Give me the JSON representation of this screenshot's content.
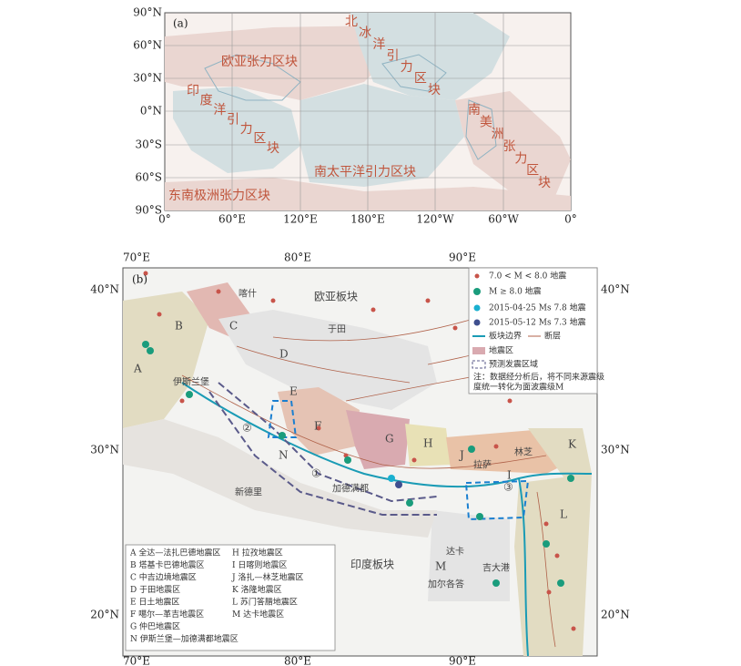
{
  "panel_a": {
    "label": "(a)",
    "lat_labels": [
      "90°N",
      "60°N",
      "30°N",
      "0°N",
      "30°S",
      "60°S",
      "90°S"
    ],
    "lon_labels": [
      "0°",
      "60°E",
      "120°E",
      "180°E",
      "120°W",
      "60°W",
      "0°"
    ],
    "regions": [
      "欧亚张力区块",
      "北冰洋引力区块",
      "印度洋引力区块",
      "南美洲张力区块",
      "南太平洋引力区块",
      "东南极洲张力区块"
    ]
  },
  "panel_b": {
    "label": "(b)",
    "lon_labels": [
      "70°E",
      "80°E",
      "90°E"
    ],
    "lat_labels": [
      "40°N",
      "30°N",
      "20°N"
    ],
    "plates": [
      "欧亚板块",
      "印度板块"
    ],
    "places": [
      "喀什",
      "于田",
      "伊斯兰堡",
      "新德里",
      "加德满都",
      "拉萨",
      "林芝",
      "达卡",
      "吉大港",
      "加尔各答"
    ],
    "zone_letters": [
      "A",
      "B",
      "C",
      "D",
      "E",
      "F",
      "G",
      "H",
      "I",
      "J",
      "K",
      "L",
      "M",
      "N"
    ],
    "zone_numbers": [
      "①",
      "②",
      "③"
    ],
    "legend": [
      "7.0 < M < 8.0 地震",
      "M ≥ 8.0 地震",
      "2015-04-25 Ms 7.8 地震",
      "2015-05-12 Ms 7.3 地震",
      "板块边界",
      "断层",
      "地震区",
      "预测发震区域"
    ],
    "legend_note": [
      "注：数据经分析后，将不同来源震级",
      "度统一转化为面波震级M"
    ],
    "zone_legend": [
      "A 全达—法扎巴德地震区",
      "B 塔基卡巴德地震区",
      "C 中吉边境地震区",
      "D 于田地震区",
      "E 日土地震区",
      "F 噶尔—革吉地震区",
      "G 仲巴地震区",
      "H 拉孜地震区",
      "I 日喀则地震区",
      "J 洛扎—林芝地震区",
      "K 洛隆地震区",
      "L 苏门答腊地震区",
      "M 达卡地震区",
      "N 伊斯兰堡—加德满都地震区"
    ]
  }
}
